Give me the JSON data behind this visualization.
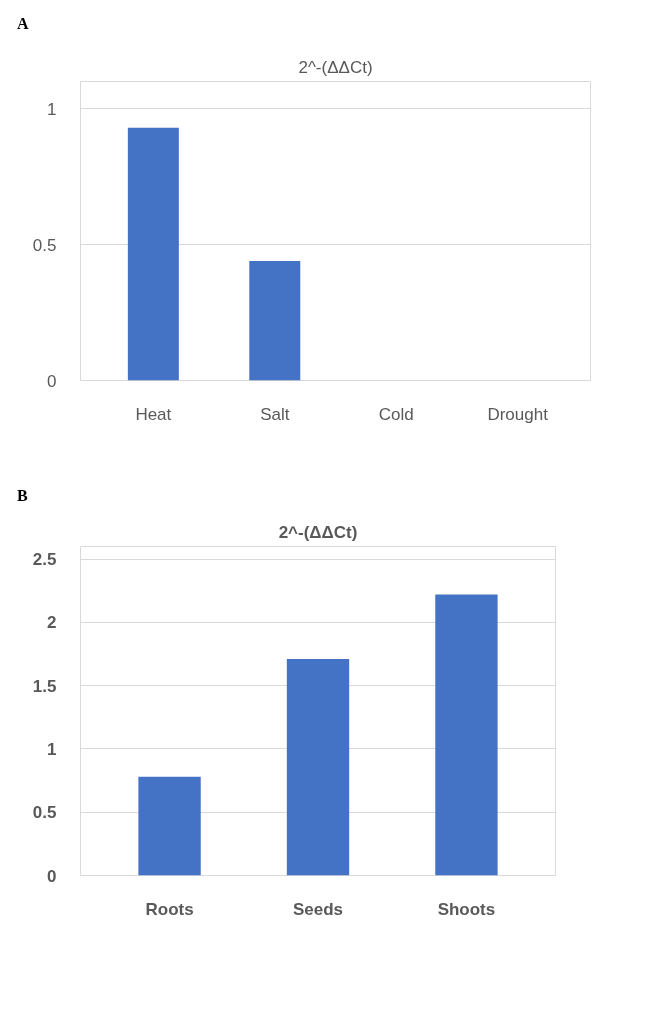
{
  "chart_data": [
    {
      "type": "bar",
      "annotations": [
        "A"
      ],
      "title": "2^-(ΔΔCt)",
      "categories": [
        "Heat",
        "Salt",
        "Cold",
        "Drought"
      ],
      "values": [
        0.93,
        0.44,
        0,
        0
      ],
      "color": "#4472c4",
      "ylim": [
        0,
        1.1
      ],
      "yticks": [
        0,
        0.5,
        1
      ],
      "grid": "y"
    },
    {
      "type": "bar",
      "annotations": [
        "B"
      ],
      "title": "2^-(ΔΔCt)",
      "categories": [
        "Roots",
        "Seeds",
        "Shoots"
      ],
      "values": [
        0.78,
        1.71,
        2.22
      ],
      "color": "#4472c4",
      "ylim": [
        0,
        2.6
      ],
      "yticks": [
        0,
        0.5,
        1,
        1.5,
        2,
        2.5
      ],
      "grid": "y"
    }
  ]
}
